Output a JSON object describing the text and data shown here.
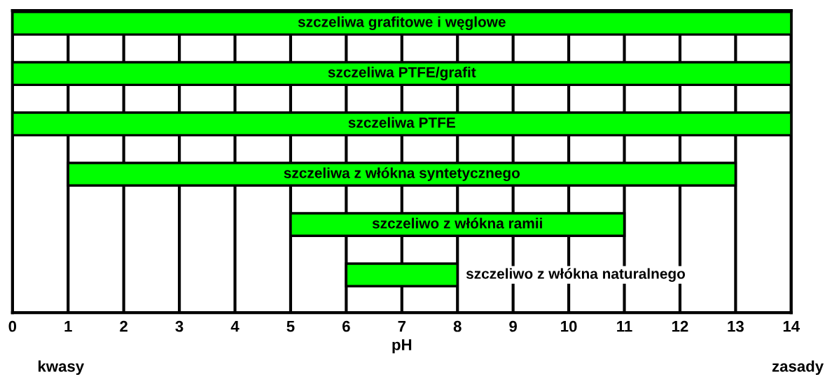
{
  "chart_data": {
    "type": "bar",
    "orientation": "horizontal",
    "xlabel": "pH",
    "categories": [
      "szczeliwa grafitowe i węglowe",
      "szczeliwa PTFE/grafit",
      "szczeliwa PTFE",
      "szczeliwa z włókna syntetycznego",
      "szczeliwo z włókna ramii",
      "szczeliwo z włókna naturalnego"
    ],
    "base": [
      0,
      0,
      0,
      1,
      5,
      6
    ],
    "values": [
      14,
      14,
      14,
      12,
      6,
      2
    ],
    "color": "#00ff00",
    "xlim": [
      0,
      14
    ],
    "xticks": [
      0,
      1,
      2,
      3,
      4,
      5,
      6,
      7,
      8,
      9,
      10,
      11,
      12,
      13,
      14
    ],
    "grid": "x",
    "annotations": [
      "kwasy",
      "zasady"
    ]
  }
}
